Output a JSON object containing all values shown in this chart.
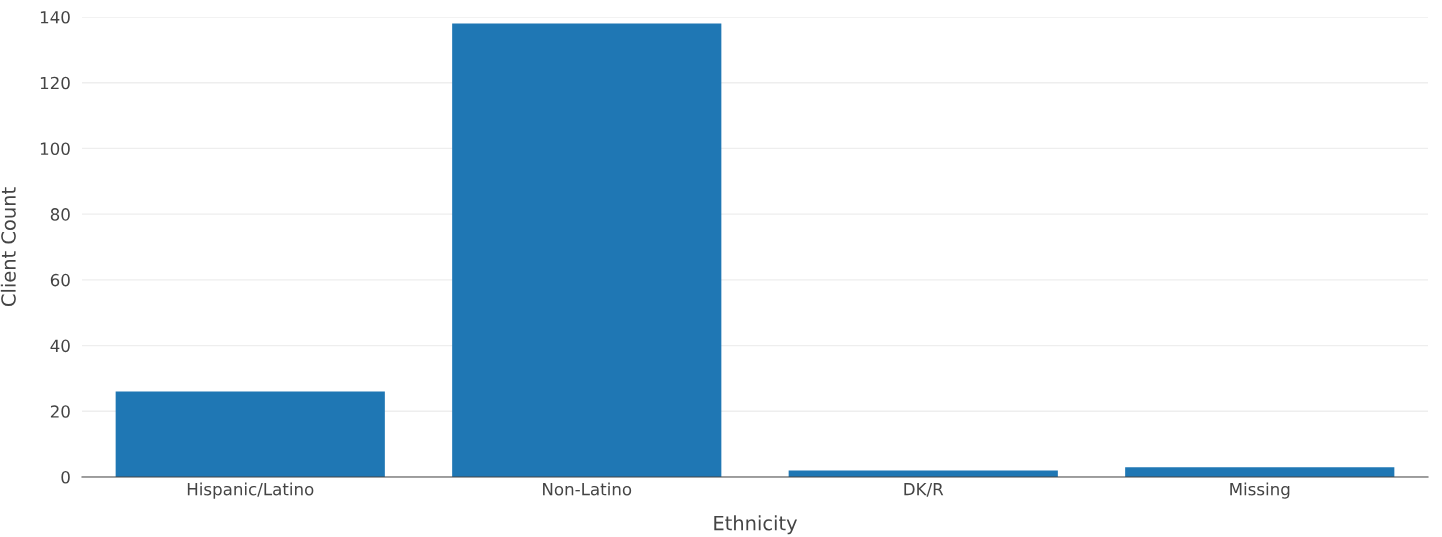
{
  "chart_data": {
    "type": "bar",
    "xlabel": "Ethnicity",
    "ylabel": "Client Count",
    "categories": [
      "Hispanic/Latino",
      "Non-Latino",
      "DK/R",
      "Missing"
    ],
    "values": [
      26,
      138,
      2,
      3
    ],
    "color": "#1f77b4",
    "ylim": [
      0,
      140
    ],
    "yticks": [
      0,
      20,
      40,
      60,
      80,
      100,
      120,
      140
    ],
    "grid": "y",
    "legend": false
  }
}
